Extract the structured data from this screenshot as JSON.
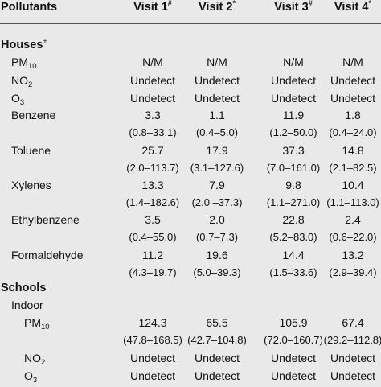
{
  "header": {
    "pollutants": "Pollutants",
    "visit1": "Visit 1",
    "visit1_sup": "#",
    "visit2": "Visit 2",
    "visit2_sup": "*",
    "visit3": "Visit 3",
    "visit3_sup": "#",
    "visit4": "Visit 4",
    "visit4_sup": "*"
  },
  "houses": {
    "title": "Houses",
    "title_sup": "+",
    "rows": [
      {
        "label": "PM",
        "label_sub": "10",
        "v": [
          "N/M",
          "N/M",
          "N/M",
          "N/M"
        ]
      },
      {
        "label": "NO",
        "label_sub": "2",
        "v": [
          "Undetect",
          "Undetect",
          "Undetect",
          "Undetect"
        ]
      },
      {
        "label": "O",
        "label_sub": "3",
        "v": [
          "Undetect",
          "Undetect",
          "Undetect",
          "Undetect"
        ]
      },
      {
        "label": "Benzene",
        "label_sub": "",
        "v": [
          "3.3",
          "1.1",
          "11.9",
          "1.8"
        ],
        "ci": [
          "(0.8–33.1)",
          "(0.4–5.0)",
          "(1.2–50.0)",
          "(0.4–24.0)"
        ]
      },
      {
        "label": "Toluene",
        "label_sub": "",
        "v": [
          "25.7",
          "17.9",
          "37.3",
          "14.8"
        ],
        "ci": [
          "(2.0–113.7)",
          "(3.1–127.6)",
          "(7.0–161.0)",
          "(2.1–82.5)"
        ]
      },
      {
        "label": "Xylenes",
        "label_sub": "",
        "v": [
          "13.3",
          "7.9",
          "9.8",
          "10.4"
        ],
        "ci": [
          "(1.4–182.6)",
          "(2.0 –37.3)",
          "(1.1–271.0)",
          "(1.1–113.0)"
        ]
      },
      {
        "label": "Ethylbenzene",
        "label_sub": "",
        "v": [
          "3.5",
          "2.0",
          "22.8",
          "2.4"
        ],
        "ci": [
          "(0.4–55.0)",
          "(0.7–7.3)",
          "(5.2–83.0)",
          "(0.6–22.0)"
        ]
      },
      {
        "label": "Formaldehyde",
        "label_sub": "",
        "v": [
          "11.2",
          "19.6",
          "14.4",
          "13.2"
        ],
        "ci": [
          "(4.3–19.7)",
          "(5.0–39.3)",
          "(1.5–33.6)",
          "(2.9–39.4)"
        ]
      }
    ]
  },
  "schools": {
    "title": "Schools",
    "indoor": "Indoor",
    "rows": [
      {
        "label": "PM",
        "label_sub": "10",
        "v": [
          "124.3",
          "65.5",
          "105.9",
          "67.4"
        ],
        "ci": [
          "(47.8–168.5)",
          "(42.7–104.8)",
          "(72.0–160.7)",
          "(29.2–112.8)"
        ]
      },
      {
        "label": "NO",
        "label_sub": "2",
        "v": [
          "Undetect",
          "Undetect",
          "Undetect",
          "Undetect"
        ]
      },
      {
        "label": "O",
        "label_sub": "3",
        "v": [
          "Undetect",
          "Undetect",
          "Undetect",
          "Undetect"
        ]
      }
    ]
  }
}
